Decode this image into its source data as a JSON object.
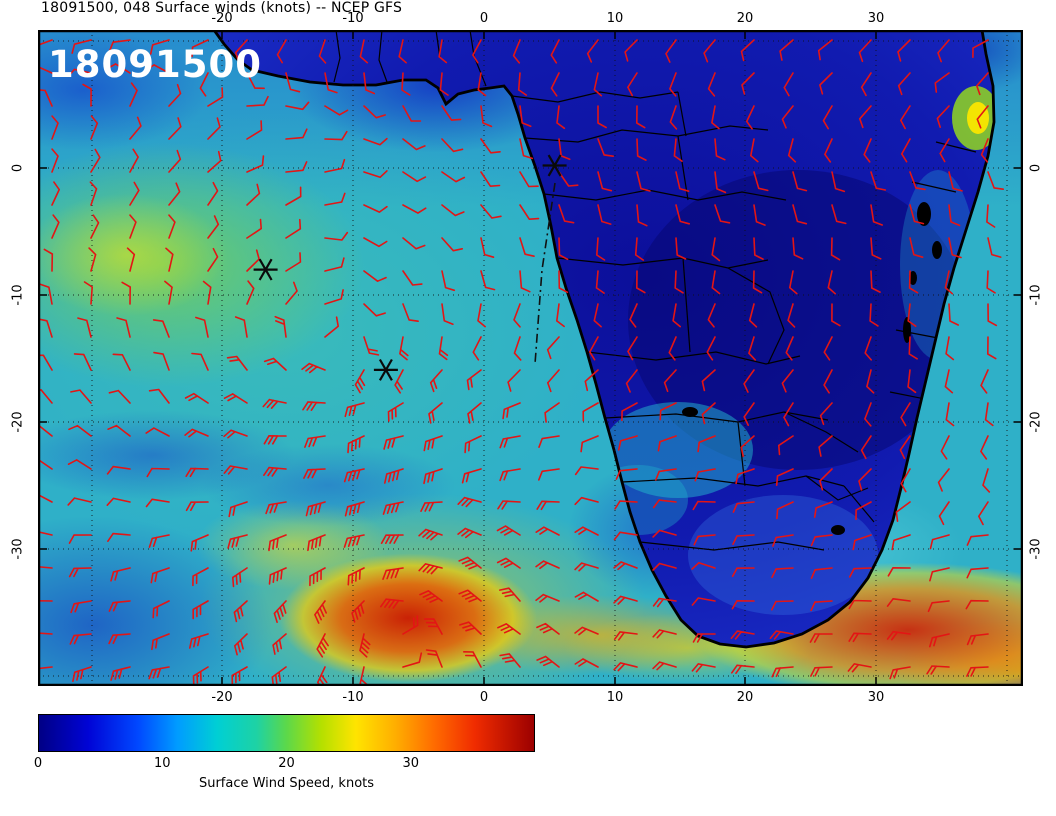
{
  "header": {
    "title": "18091500, 048 Surface winds (knots) -- NCEP GFS"
  },
  "map": {
    "timestamp_label": "18091500",
    "axes": {
      "top": [
        "-20",
        "-10",
        "0",
        "10",
        "20",
        "30"
      ],
      "bottom": [
        "-20",
        "-10",
        "0",
        "10",
        "20",
        "30"
      ],
      "left": [
        "0",
        "-10",
        "-20",
        "-30"
      ],
      "right": [
        "0",
        "-10",
        "-20",
        "-30"
      ]
    },
    "colors": {
      "ocean_base": "#2fb0c8",
      "land": "#111bb0",
      "coast": "#000000",
      "barb": "#e31515",
      "grid": "#101010",
      "marker": "#0a0a0a",
      "storm_max": "#cc1a00"
    }
  },
  "colorbar": {
    "ticks": [
      "0",
      "10",
      "20",
      "30"
    ],
    "max_value": 40,
    "label": "Surface Wind Speed, knots",
    "stops": [
      [
        0,
        "#000085"
      ],
      [
        0.1,
        "#0004d6"
      ],
      [
        0.2,
        "#0048ff"
      ],
      [
        0.28,
        "#009cff"
      ],
      [
        0.36,
        "#00cfd4"
      ],
      [
        0.44,
        "#1ed2a4"
      ],
      [
        0.5,
        "#5cd84a"
      ],
      [
        0.57,
        "#b4e000"
      ],
      [
        0.64,
        "#ffe400"
      ],
      [
        0.72,
        "#ffae00"
      ],
      [
        0.8,
        "#ff6a00"
      ],
      [
        0.88,
        "#f02c00"
      ],
      [
        1,
        "#9c0000"
      ]
    ]
  },
  "chart_data": {
    "type": "heatmap",
    "title": "18091500, 048 Surface winds (knots) -- NCEP GFS",
    "model": "NCEP GFS",
    "init_time": "18091500",
    "forecast_hour": 48,
    "variable": "Surface wind speed",
    "units": "knots",
    "lon_range": [
      -34,
      41
    ],
    "lat_range": [
      -41,
      11
    ],
    "lon_ticks": [
      -20,
      -10,
      0,
      10,
      20,
      30
    ],
    "lat_ticks": [
      0,
      -10,
      -20,
      -30
    ],
    "colorbar_range": [
      0,
      40
    ],
    "colorbar_ticks": [
      0,
      10,
      20,
      30
    ],
    "overlays": [
      "red wind barbs on ~2.5 degree grid",
      "black coastlines and country borders",
      "dotted lat/lon grid every 10 degrees"
    ],
    "markers": [
      {
        "type": "asterisk",
        "lon": 5.4,
        "lat": 0.2
      },
      {
        "type": "asterisk",
        "lon": -16.7,
        "lat": -8.0
      },
      {
        "type": "asterisk",
        "lon": -7.5,
        "lat": -15.9
      }
    ],
    "track": {
      "style": "dash-dot",
      "points": [
        [
          5.4,
          -1.2
        ],
        [
          4.4,
          -8.0
        ],
        [
          3.9,
          -15.4
        ]
      ]
    },
    "features": [
      {
        "name": "storm wind maximum in South Atlantic",
        "lon": -8,
        "lat": -34,
        "speed_knots": 36
      },
      {
        "name": "strong westerly band south of South Africa",
        "lon": 25,
        "lat": -36,
        "speed_knots": 33
      },
      {
        "name": "enhanced SE trade winds",
        "lon": -27,
        "lat": -8,
        "speed_knots": 20
      },
      {
        "name": "light winds over African interior",
        "lon": 25,
        "lat": -10,
        "speed_knots": 4
      }
    ]
  }
}
